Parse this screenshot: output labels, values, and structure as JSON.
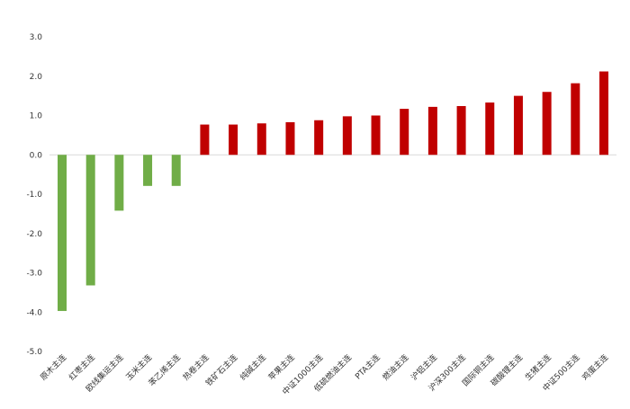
{
  "chart_data": {
    "type": "bar",
    "title": "",
    "xlabel": "",
    "ylabel": "",
    "ylim": [
      -5.0,
      3.0
    ],
    "yticks": [
      "3.0",
      "2.0",
      "1.0",
      "0.0",
      "-1.0",
      "-2.0",
      "-3.0",
      "-4.0",
      "-5.0"
    ],
    "grid": false,
    "legend": "none",
    "colors": {
      "positive": "#c00000",
      "negative": "#70ad47",
      "zero_line": "#d9d9d9"
    },
    "categories": [
      "原木主连",
      "红枣主连",
      "欧线集运主连",
      "玉米主连",
      "苯乙烯主连",
      "热卷主连",
      "铁矿石主连",
      "纯碱主连",
      "苹果主连",
      "中证1000主连",
      "低硫燃油主连",
      "PTA主连",
      "燃油主连",
      "沪铝主连",
      "沪深300主连",
      "国际铜主连",
      "碳酸锂主连",
      "生猪主连",
      "中证500主连",
      "鸡蛋主连"
    ],
    "values": [
      -3.97,
      -3.32,
      -1.42,
      -0.79,
      -0.79,
      0.77,
      0.77,
      0.8,
      0.83,
      0.88,
      0.98,
      1.0,
      1.17,
      1.22,
      1.24,
      1.33,
      1.5,
      1.6,
      1.82,
      2.12
    ]
  }
}
